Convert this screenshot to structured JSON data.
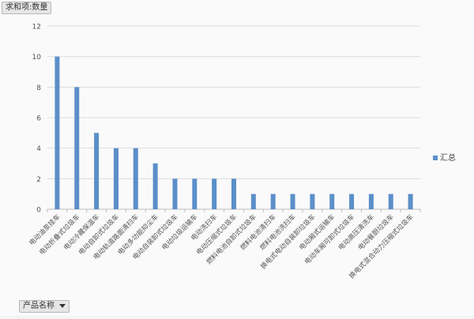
{
  "fields": {
    "value_field": "求和项:数量",
    "axis_field": "产品名称"
  },
  "legend": {
    "label": "汇总"
  },
  "colors": {
    "bar": "#5b8fc9",
    "grid": "#dcdcdc",
    "axis": "#bdbdbd",
    "tick": "#555555"
  },
  "chart_data": {
    "type": "bar",
    "categories": [
      "电动油泵挂车",
      "电动折叠式垃圾车",
      "电动冷藏保温车",
      "电动自卸式垃圾车",
      "电动轨道路面清扫车",
      "电动多功能抑尘车",
      "电动自装卸式垃圾车",
      "电动垃圾运输车",
      "电动洗扫车",
      "电动压缩式垃圾车",
      "燃料电池自卸式垃圾车",
      "燃料电池清扫车",
      "燃料电池洗扫车",
      "换电式电动自装卸垃圾车",
      "电动厢式运输车",
      "电动车厢可卸式垃圾车",
      "电动高压清洗车",
      "电动餐厨垃圾车",
      "换电式混合动力压缩式垃圾车"
    ],
    "series": [
      {
        "name": "汇总",
        "values": [
          10,
          8,
          5,
          4,
          4,
          3,
          2,
          2,
          2,
          2,
          1,
          1,
          1,
          1,
          1,
          1,
          1,
          1,
          1
        ]
      }
    ],
    "ylim": [
      0,
      12
    ],
    "yticks": [
      0,
      2,
      4,
      6,
      8,
      10,
      12
    ],
    "grid": true,
    "legend_position": "right"
  }
}
